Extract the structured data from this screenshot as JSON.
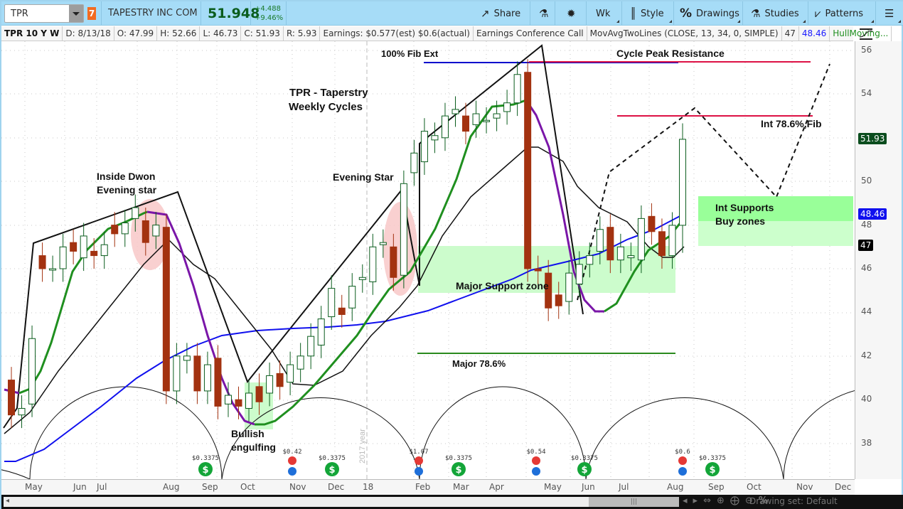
{
  "toolbar": {
    "symbol": "TPR",
    "alert_badge": "7",
    "company": "TAPESTRY INC COM",
    "last_price": "51.948",
    "change": "+4.488",
    "change_pct": "+9.46%",
    "buttons": [
      {
        "label": "Share",
        "icon": "share-icon"
      },
      {
        "label": "",
        "icon": "flask-icon"
      },
      {
        "label": "",
        "icon": "gear-icon"
      },
      {
        "label": "Wk",
        "icon": ""
      },
      {
        "label": "Style",
        "icon": "candle-style-icon"
      },
      {
        "label": "Drawings",
        "icon": "percent-icon"
      },
      {
        "label": "Studies",
        "icon": "flask-icon"
      },
      {
        "label": "Patterns",
        "icon": "patterns-icon"
      },
      {
        "label": "",
        "icon": "list-menu-icon"
      }
    ]
  },
  "infobar": {
    "title": "TPR 10 Y W",
    "date": "D: 8/13/18",
    "open": "O: 47.99",
    "high": "H: 52.66",
    "low": "L: 46.73",
    "close": "C: 51.93",
    "range": "R: 5.93",
    "earnings": "Earnings: $0.577(est) $0.6(actual)",
    "conf_call": "Earnings Conference Call",
    "study": "MovAvgTwoLines (CLOSE, 13, 34, 0, SIMPLE)",
    "ma13": "47",
    "ma34": "48.46",
    "hull": "HullMoving..."
  },
  "yaxis": {
    "ticks": [
      "56",
      "54",
      "52",
      "50",
      "48",
      "46",
      "44",
      "42",
      "40",
      "38"
    ],
    "labels": [
      {
        "value": "51.93",
        "color": "#0b4d1e"
      },
      {
        "value": "48.46",
        "color": "#1010ee"
      },
      {
        "value": "47",
        "color": "#000000"
      }
    ]
  },
  "xaxis": {
    "ticks": [
      "May",
      "Jun",
      "Jul",
      "Aug",
      "Sep",
      "Oct",
      "Nov",
      "Dec",
      "18",
      "Feb",
      "Mar",
      "Apr",
      "May",
      "Jun",
      "Jul",
      "Aug",
      "Sep",
      "Oct",
      "Nov",
      "Dec"
    ]
  },
  "annotations": {
    "title1": "TPR - Taperstry",
    "title2": "Weekly Cycles",
    "inside_down1": "Inside Dwon",
    "inside_down2": "Evening star",
    "evening_star": "Evening Star",
    "fib_ext": "100% Fib Ext",
    "cycle_peak": "Cycle Peak Resistance",
    "int_fib": "Int 78.6%,Fib",
    "int_supports1": "Int  Supports",
    "int_supports2": "Buy zones",
    "major_support": "Major Support zone",
    "major_786": "Major 78.6%",
    "bullish1": "Bullish",
    "bullish2": "engulfing",
    "year_marker": "2017 year"
  },
  "events": [
    {
      "type": "dividend",
      "label": "$0.3375",
      "x": 287
    },
    {
      "type": "earnings",
      "label": "$0.42",
      "x": 409
    },
    {
      "type": "dividend",
      "label": "$0.3375",
      "x": 465
    },
    {
      "type": "earnings",
      "label": "$1.07",
      "x": 587
    },
    {
      "type": "dividend",
      "label": "$0.3375",
      "x": 643
    },
    {
      "type": "earnings",
      "label": "$0.54",
      "x": 752
    },
    {
      "type": "dividend",
      "label": "$0.3375",
      "x": 820
    },
    {
      "type": "earnings",
      "label": "$0.6",
      "x": 958
    },
    {
      "type": "dividend",
      "label": "$0.3375",
      "x": 1000
    }
  ],
  "bottombar": {
    "drawing_set": "Drawing set: Default"
  },
  "chart_data": {
    "type": "candlestick",
    "title": "TPR 10 Y W",
    "symbol": "TPR",
    "interval": "Weekly",
    "ylim": [
      37,
      57
    ],
    "candles_approx_close": [
      {
        "week": "2017-05",
        "open": 40.9,
        "close": 39.3
      },
      {
        "week": "2017-05",
        "open": 39.3,
        "close": 39.6
      },
      {
        "week": "2017-05",
        "open": 39.8,
        "close": 42.8
      },
      {
        "week": "2017-06",
        "open": 46.6,
        "close": 46.0
      },
      {
        "week": "2017-06",
        "open": 46.0,
        "close": 46.0
      },
      {
        "week": "2017-06",
        "open": 46.0,
        "close": 47.0
      },
      {
        "week": "2017-07",
        "open": 47.2,
        "close": 46.8
      },
      {
        "week": "2017-07",
        "open": 46.5,
        "close": 47.5
      },
      {
        "week": "2017-07",
        "open": 46.8,
        "close": 46.6
      },
      {
        "week": "2017-07",
        "open": 46.6,
        "close": 47.1
      },
      {
        "week": "2017-08",
        "open": 48.0,
        "close": 47.6
      },
      {
        "week": "2017-08",
        "open": 47.6,
        "close": 48.1
      },
      {
        "week": "2017-08",
        "open": 48.3,
        "close": 48.8
      },
      {
        "week": "2017-08",
        "open": 48.2,
        "close": 47.2
      },
      {
        "week": "2017-08",
        "open": 47.5,
        "close": 48.0
      },
      {
        "week": "2017-08",
        "open": 47.9,
        "close": 40.4
      },
      {
        "week": "2017-09",
        "open": 40.4,
        "close": 42.0
      },
      {
        "week": "2017-09",
        "open": 41.8,
        "close": 42.0
      },
      {
        "week": "2017-09",
        "open": 42.0,
        "close": 40.4
      },
      {
        "week": "2017-09",
        "open": 40.4,
        "close": 41.6
      },
      {
        "week": "2017-10",
        "open": 41.9,
        "close": 39.7
      },
      {
        "week": "2017-10",
        "open": 39.8,
        "close": 40.2
      },
      {
        "week": "2017-10",
        "open": 40.0,
        "close": 39.7
      },
      {
        "week": "2017-10",
        "open": 39.6,
        "close": 40.3
      },
      {
        "week": "2017-11",
        "open": 40.6,
        "close": 39.9
      },
      {
        "week": "2017-11",
        "open": 40.3,
        "close": 41.1
      },
      {
        "week": "2017-11",
        "open": 41.2,
        "close": 40.6
      },
      {
        "week": "2017-11",
        "open": 40.8,
        "close": 41.6
      },
      {
        "week": "2017-12",
        "open": 41.4,
        "close": 42.0
      },
      {
        "week": "2017-12",
        "open": 42.0,
        "close": 42.9
      },
      {
        "week": "2017-12",
        "open": 42.5,
        "close": 43.7
      },
      {
        "week": "2017-12",
        "open": 43.8,
        "close": 45.1
      },
      {
        "week": "2018-01",
        "open": 44.2,
        "close": 43.9
      },
      {
        "week": "2018-01",
        "open": 44.2,
        "close": 45.2
      },
      {
        "week": "2018-01",
        "open": 45.5,
        "close": 45.6
      },
      {
        "week": "2018-01",
        "open": 45.4,
        "close": 47.0
      },
      {
        "week": "2018-01",
        "open": 47.1,
        "close": 47.2
      },
      {
        "week": "2018-02",
        "open": 47.0,
        "close": 45.6
      },
      {
        "week": "2018-02",
        "open": 45.7,
        "close": 49.9
      },
      {
        "week": "2018-02",
        "open": 50.4,
        "close": 51.3
      },
      {
        "week": "2018-02",
        "open": 50.9,
        "close": 52.3
      },
      {
        "week": "2018-03",
        "open": 51.9,
        "close": 52.1
      },
      {
        "week": "2018-03",
        "open": 52.0,
        "close": 53.0
      },
      {
        "week": "2018-03",
        "open": 53.1,
        "close": 53.3
      },
      {
        "week": "2018-03",
        "open": 53.0,
        "close": 52.3
      },
      {
        "week": "2018-04",
        "open": 52.6,
        "close": 53.1
      },
      {
        "week": "2018-04",
        "open": 52.8,
        "close": 52.8
      },
      {
        "week": "2018-04",
        "open": 52.9,
        "close": 53.1
      },
      {
        "week": "2018-04",
        "open": 53.2,
        "close": 53.6
      },
      {
        "week": "2018-04",
        "open": 53.6,
        "close": 54.9
      },
      {
        "week": "2018-05",
        "open": 55.0,
        "close": 46.0
      },
      {
        "week": "2018-05",
        "open": 46.0,
        "close": 45.9
      },
      {
        "week": "2018-05",
        "open": 45.8,
        "close": 44.2
      },
      {
        "week": "2018-05",
        "open": 44.8,
        "close": 44.3
      },
      {
        "week": "2018-05",
        "open": 44.5,
        "close": 45.8
      },
      {
        "week": "2018-06",
        "open": 45.3,
        "close": 46.2
      },
      {
        "week": "2018-06",
        "open": 46.2,
        "close": 46.6
      },
      {
        "week": "2018-06",
        "open": 46.8,
        "close": 47.8
      },
      {
        "week": "2018-06",
        "open": 47.9,
        "close": 46.4
      },
      {
        "week": "2018-07",
        "open": 46.4,
        "close": 47.0
      },
      {
        "week": "2018-07",
        "open": 46.5,
        "close": 46.6
      },
      {
        "week": "2018-07",
        "open": 46.4,
        "close": 48.3
      },
      {
        "week": "2018-07",
        "open": 48.4,
        "close": 47.7
      },
      {
        "week": "2018-08",
        "open": 47.7,
        "close": 46.6
      },
      {
        "week": "2018-08",
        "open": 46.6,
        "close": 47.99
      },
      {
        "week": "2018-08-13",
        "open": 47.99,
        "high": 52.66,
        "low": 46.73,
        "close": 51.93
      }
    ],
    "studies": [
      {
        "name": "MovAvg 13 SIMPLE",
        "last": 47,
        "color": "#000000"
      },
      {
        "name": "MovAvg 34 SIMPLE",
        "last": 48.46,
        "color": "#1010ee"
      },
      {
        "name": "HullMovingAvg",
        "color": "#1f8f1f",
        "down_color": "#7a16a8"
      }
    ],
    "levels": [
      {
        "name": "100% Fib Ext",
        "price": 55.4,
        "color": "#0000cc"
      },
      {
        "name": "Cycle Peak Resistance",
        "price": 55.4,
        "color": "#dd1144"
      },
      {
        "name": "Int 78.6% Fib",
        "price": 53.0,
        "color": "#dd1144"
      },
      {
        "name": "Major 78.6%",
        "price": 42.1,
        "color": "#2a8a1e"
      }
    ],
    "zones": [
      {
        "name": "Major Support zone",
        "from": 45.0,
        "to": 47.0
      },
      {
        "name": "Int Supports Buy zones",
        "from": 47.0,
        "to": 49.2
      }
    ]
  }
}
